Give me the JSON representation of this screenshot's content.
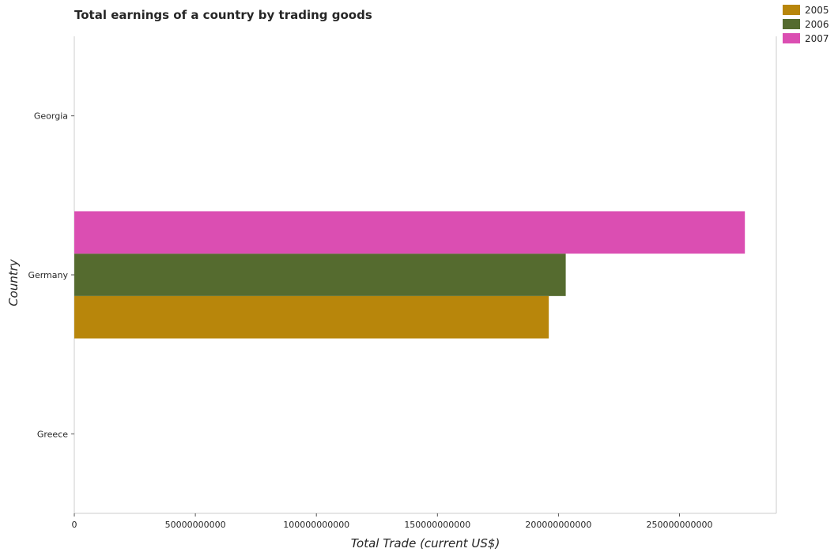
{
  "chart_data": {
    "type": "bar",
    "orientation": "horizontal",
    "title": "Total earnings of a country by trading goods",
    "xlabel": "Total Trade (current US$)",
    "ylabel": "Country",
    "categories": [
      "Georgia",
      "Germany",
      "Greece"
    ],
    "series": [
      {
        "name": "2005",
        "color": "#b8860b",
        "values": [
          0,
          196000000000,
          0
        ]
      },
      {
        "name": "2006",
        "color": "#556b2f",
        "values": [
          0,
          203000000000,
          0
        ]
      },
      {
        "name": "2007",
        "color": "#db4eb2",
        "values": [
          0,
          277000000000,
          0
        ]
      }
    ],
    "xlim": [
      0,
      290000000000
    ],
    "xticks": [
      0,
      50000000000,
      100000000000,
      150000000000,
      200000000000,
      250000000000
    ],
    "xtick_labels": [
      "0",
      "50000000000",
      "100000000000",
      "150000000000",
      "200000000000",
      "250000000000"
    ],
    "grid": false,
    "legend_position": "top-right"
  }
}
